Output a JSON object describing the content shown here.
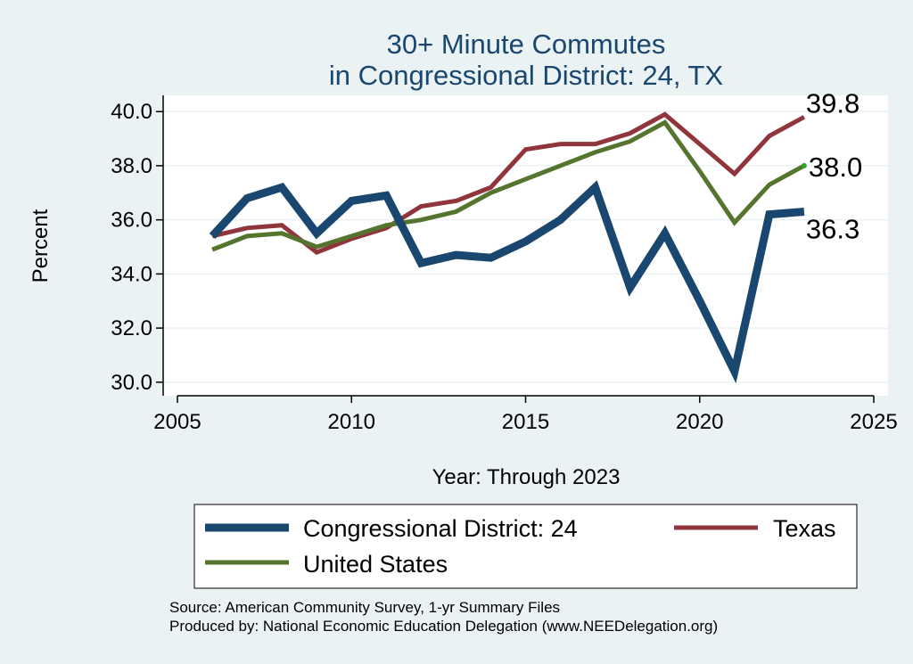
{
  "chart_data": {
    "type": "line",
    "title": [
      "30+ Minute Commutes",
      "in Congressional District:  24, TX"
    ],
    "xlabel": "Year: Through 2023",
    "ylabel": "Percent",
    "xlim": [
      2005,
      2025
    ],
    "ylim": [
      29.5,
      40.6
    ],
    "x_ticks": [
      2005,
      2010,
      2015,
      2020,
      2025
    ],
    "y_ticks": [
      "30.0",
      "32.0",
      "34.0",
      "36.0",
      "38.0",
      "40.0"
    ],
    "x": [
      2006,
      2007,
      2008,
      2009,
      2010,
      2011,
      2012,
      2013,
      2014,
      2015,
      2016,
      2017,
      2018,
      2019,
      2020,
      2021,
      2022,
      2023
    ],
    "series": [
      {
        "name": "Congressional District:  24",
        "color": "#1a476f",
        "values": [
          35.4,
          36.8,
          37.2,
          35.5,
          36.7,
          36.9,
          34.4,
          34.7,
          34.6,
          35.2,
          36.0,
          37.2,
          33.5,
          35.5,
          33.0,
          30.4,
          36.2,
          36.3
        ],
        "end_label": "36.3"
      },
      {
        "name": "Texas",
        "color": "#90353b",
        "values": [
          35.4,
          35.7,
          35.8,
          34.8,
          35.3,
          35.7,
          36.5,
          36.7,
          37.2,
          38.6,
          38.8,
          38.8,
          39.2,
          39.9,
          38.8,
          37.7,
          39.1,
          39.8
        ],
        "end_label": "39.8"
      },
      {
        "name": "United States",
        "color": "#55752f",
        "values": [
          34.9,
          35.4,
          35.5,
          35.0,
          35.4,
          35.8,
          36.0,
          36.3,
          37.0,
          37.5,
          38.0,
          38.5,
          38.9,
          39.6,
          37.8,
          35.9,
          37.3,
          38.0
        ],
        "end_label": "38.0"
      }
    ],
    "legend": [
      "Congressional District:  24",
      "Texas",
      "United States"
    ],
    "legend_position": "bottom",
    "grid": true
  },
  "source_lines": [
    "Source: American Community Survey, 1-yr Summary Files",
    "Produced by: National Economic Education Delegation (www.NEEDelegation.org)"
  ]
}
